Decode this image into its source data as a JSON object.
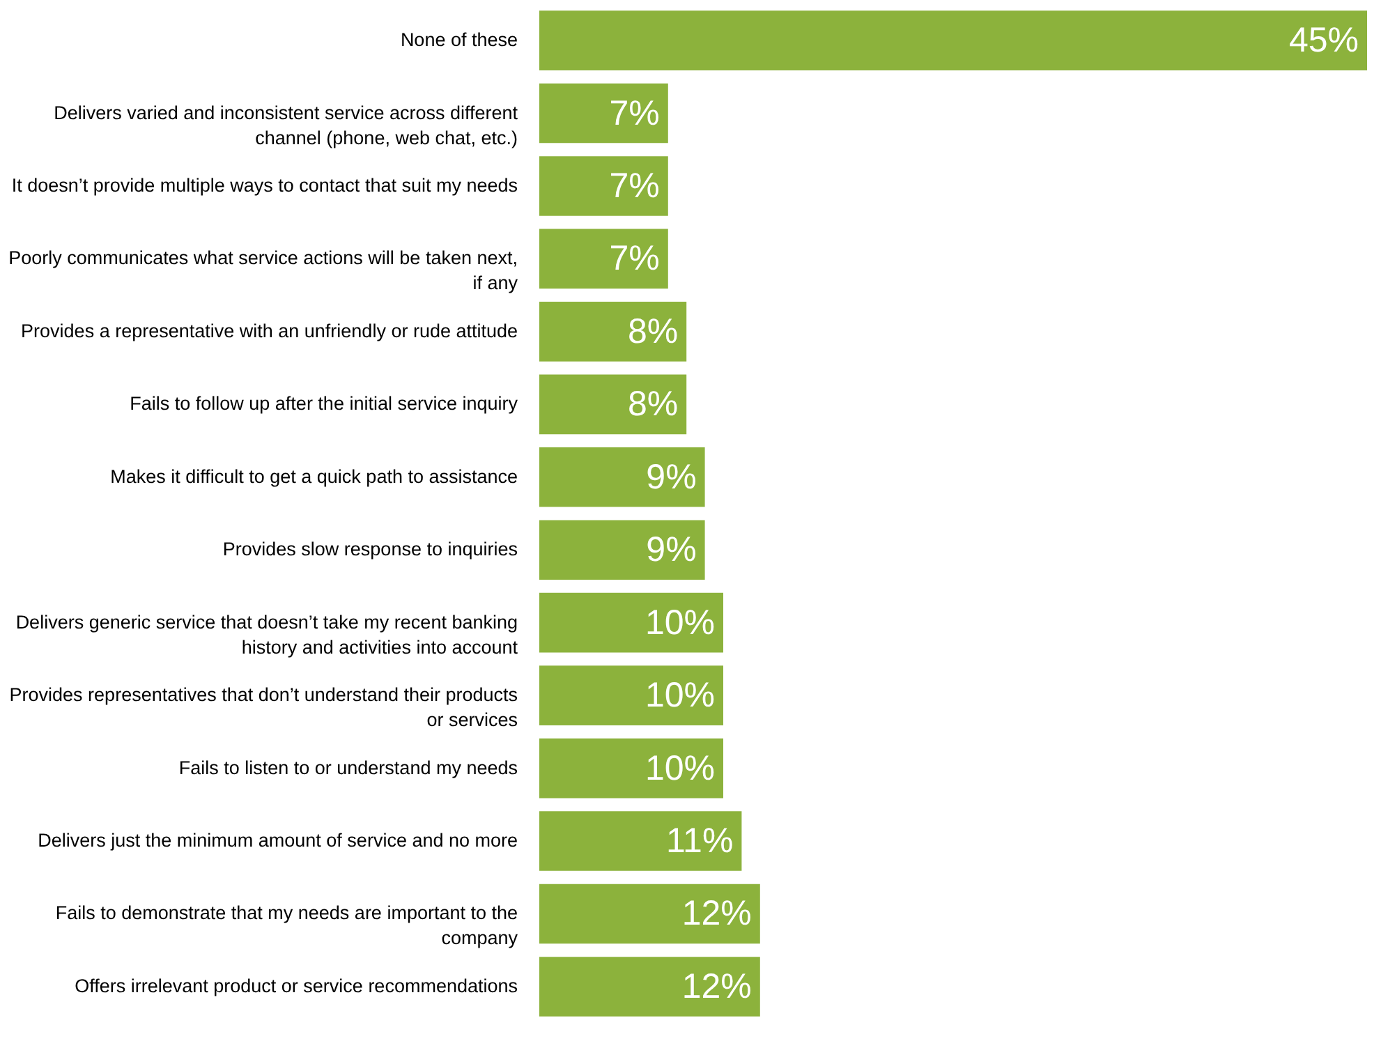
{
  "chart_data": {
    "type": "bar",
    "orientation": "horizontal",
    "color": "#8cb23c",
    "data_labels": true,
    "categories": [
      "None of these",
      "Delivers varied and inconsistent service across different channel (phone, web chat, etc.)",
      "It doesn’t provide multiple ways to contact that suit my needs",
      "Poorly communicates what service actions will be taken next, if any",
      "Provides a representative with an unfriendly or rude attitude",
      "Fails to follow up after the initial service inquiry",
      "Makes it difficult to get a quick path to assistance",
      "Provides slow response to inquiries",
      "Delivers generic service that doesn’t take my recent banking history and activities into account",
      "Provides representatives that don’t understand their products or services",
      "Fails to listen to or understand my needs",
      "Delivers just the minimum amount of service and no more",
      "Fails to demonstrate that my needs are important to the company",
      "Offers irrelevant product or service recommendations"
    ],
    "values": [
      45,
      7,
      7,
      7,
      8,
      8,
      9,
      9,
      10,
      10,
      10,
      11,
      12,
      12
    ],
    "value_labels": [
      "45%",
      "7%",
      "7%",
      "7%",
      "8%",
      "8%",
      "9%",
      "9%",
      "10%",
      "10%",
      "10%",
      "11%",
      "12%",
      "12%"
    ]
  }
}
